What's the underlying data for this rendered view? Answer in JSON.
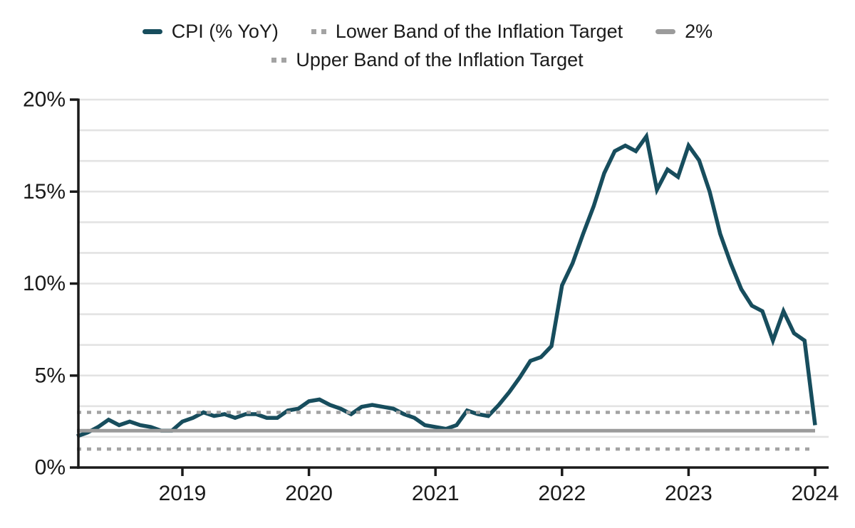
{
  "legend": {
    "items": [
      {
        "label": "CPI (% YoY)",
        "swatch": "solid-line"
      },
      {
        "label": "Lower Band of the Inflation Target",
        "swatch": "dotted-line"
      },
      {
        "label": "2%",
        "swatch": "solid-line"
      },
      {
        "label": "Upper Band of the Inflation Target",
        "swatch": "dotted-line"
      }
    ]
  },
  "chart_data": {
    "type": "line",
    "title": "",
    "xlabel": "",
    "ylabel": "",
    "x_frequency": "monthly",
    "x_start": "2018-03",
    "x_end": "2024-01",
    "ylim": [
      0,
      20
    ],
    "y_tick_labels": [
      "0%",
      "5%",
      "10%",
      "15%",
      "20%"
    ],
    "y_tick_values": [
      0,
      5,
      10,
      15,
      20
    ],
    "y_minor_grid_step": 1.6667,
    "x_tick_labels": [
      "2019",
      "2020",
      "2021",
      "2022",
      "2023",
      "2024"
    ],
    "x_tick_month_indices": [
      10,
      22,
      34,
      46,
      58,
      70
    ],
    "grid": "horizontal-only",
    "legend_position": "top-center",
    "background": "#ffffff",
    "axis_color": "#1a1a1a",
    "gridline_color": "#e3e3e3",
    "text_color": "#1a1a1a",
    "series": [
      {
        "name": "CPI (% YoY)",
        "kind": "data-line",
        "style": "solid",
        "color": "#174d5d",
        "values": [
          1.7,
          1.9,
          2.2,
          2.6,
          2.3,
          2.5,
          2.3,
          2.2,
          2.0,
          2.0,
          2.5,
          2.7,
          3.0,
          2.8,
          2.9,
          2.7,
          2.9,
          2.9,
          2.7,
          2.7,
          3.1,
          3.2,
          3.6,
          3.7,
          3.4,
          3.2,
          2.9,
          3.3,
          3.4,
          3.3,
          3.2,
          2.9,
          2.7,
          2.3,
          2.2,
          2.1,
          2.3,
          3.1,
          2.9,
          2.8,
          3.4,
          4.1,
          4.9,
          5.8,
          6.0,
          6.6,
          9.9,
          11.1,
          12.7,
          14.2,
          16.0,
          17.2,
          17.5,
          17.2,
          18.0,
          15.1,
          16.2,
          15.8,
          17.5,
          16.7,
          15.0,
          12.7,
          11.1,
          9.7,
          8.8,
          8.5,
          6.9,
          8.5,
          7.3,
          6.9,
          2.3
        ]
      },
      {
        "name": "Lower Band of the Inflation Target",
        "kind": "constant-line",
        "style": "dotted",
        "color": "#a3a3a3",
        "value": 1
      },
      {
        "name": "2%",
        "kind": "constant-line",
        "style": "solid",
        "color": "#9b9b9b",
        "value": 2
      },
      {
        "name": "Upper Band of the Inflation Target",
        "kind": "constant-line",
        "style": "dotted",
        "color": "#a3a3a3",
        "value": 3
      }
    ]
  }
}
